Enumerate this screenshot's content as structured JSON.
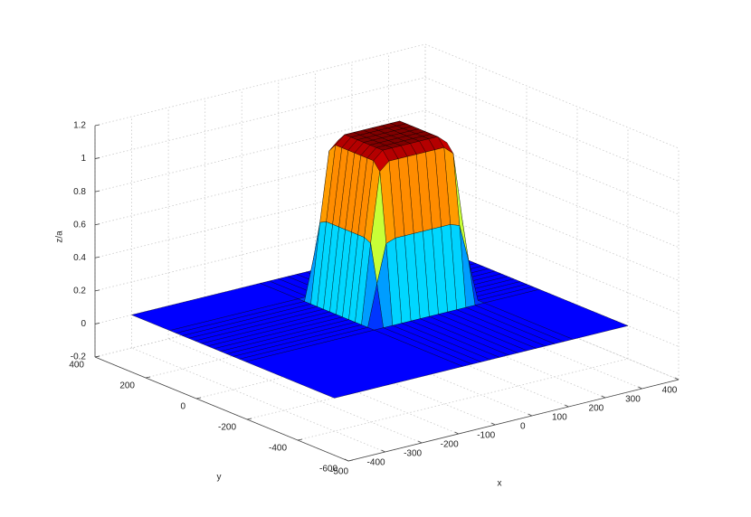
{
  "chart_data": {
    "type": "surface",
    "colormap": "jet",
    "grid": true,
    "x_label": "x",
    "y_label": "y",
    "z_label": "z/a",
    "xlim": [
      -500,
      400
    ],
    "ylim": [
      -600,
      400
    ],
    "zlim": [
      -0.2,
      1.2
    ],
    "xticks": [
      -500,
      -400,
      -300,
      -200,
      -100,
      0,
      100,
      200,
      300,
      400
    ],
    "yticks": [
      -600,
      -400,
      -200,
      0,
      200,
      400
    ],
    "zticks": [
      -0.2,
      0,
      0.2,
      0.4,
      0.6,
      0.8,
      1,
      1.2
    ],
    "x": [
      -400,
      -50,
      -25,
      0,
      25,
      50,
      75,
      100,
      125,
      150,
      175,
      200,
      225,
      250,
      400
    ],
    "y": [
      -400,
      -50,
      -25,
      0,
      25,
      50,
      75,
      100,
      125,
      150,
      175,
      200,
      225,
      250,
      400
    ],
    "z": [
      [
        0,
        0,
        0,
        0,
        0,
        0,
        0,
        0,
        0,
        0,
        0,
        0,
        0,
        0,
        0
      ],
      [
        0,
        0,
        0,
        0,
        0,
        0,
        0,
        0,
        0,
        0,
        0,
        0,
        0,
        0,
        0
      ],
      [
        0,
        0,
        0.25,
        0.48,
        0.5,
        0.5,
        0.5,
        0.5,
        0.5,
        0.5,
        0.5,
        0.48,
        0.25,
        0,
        0
      ],
      [
        0,
        0,
        0.48,
        0.9,
        0.95,
        0.95,
        0.95,
        0.95,
        0.95,
        0.95,
        0.95,
        0.9,
        0.48,
        0,
        0
      ],
      [
        0,
        0,
        0.5,
        0.95,
        1,
        1,
        1,
        1,
        1,
        1,
        1,
        0.95,
        0.5,
        0,
        0
      ],
      [
        0,
        0,
        0.5,
        0.95,
        1,
        1,
        1,
        1,
        1,
        1,
        1,
        0.95,
        0.5,
        0,
        0
      ],
      [
        0,
        0,
        0.5,
        0.95,
        1,
        1,
        1,
        1,
        1,
        1,
        1,
        0.95,
        0.5,
        0,
        0
      ],
      [
        0,
        0,
        0.5,
        0.95,
        1,
        1,
        1,
        1,
        1,
        1,
        1,
        0.95,
        0.5,
        0,
        0
      ],
      [
        0,
        0,
        0.5,
        0.95,
        1,
        1,
        1,
        1,
        1,
        1,
        1,
        0.95,
        0.5,
        0,
        0
      ],
      [
        0,
        0,
        0.5,
        0.95,
        1,
        1,
        1,
        1,
        1,
        1,
        1,
        0.95,
        0.5,
        0,
        0
      ],
      [
        0,
        0,
        0.5,
        0.95,
        1,
        1,
        1,
        1,
        1,
        1,
        1,
        0.95,
        0.5,
        0,
        0
      ],
      [
        0,
        0,
        0.48,
        0.9,
        0.95,
        0.95,
        0.95,
        0.95,
        0.95,
        0.95,
        0.95,
        0.9,
        0.48,
        0,
        0
      ],
      [
        0,
        0,
        0.25,
        0.48,
        0.5,
        0.5,
        0.5,
        0.5,
        0.5,
        0.5,
        0.5,
        0.48,
        0.25,
        0,
        0
      ],
      [
        0,
        0,
        0,
        0,
        0,
        0,
        0,
        0,
        0,
        0,
        0,
        0,
        0,
        0,
        0
      ],
      [
        0,
        0,
        0,
        0,
        0,
        0,
        0,
        0,
        0,
        0,
        0,
        0,
        0,
        0,
        0
      ]
    ]
  }
}
